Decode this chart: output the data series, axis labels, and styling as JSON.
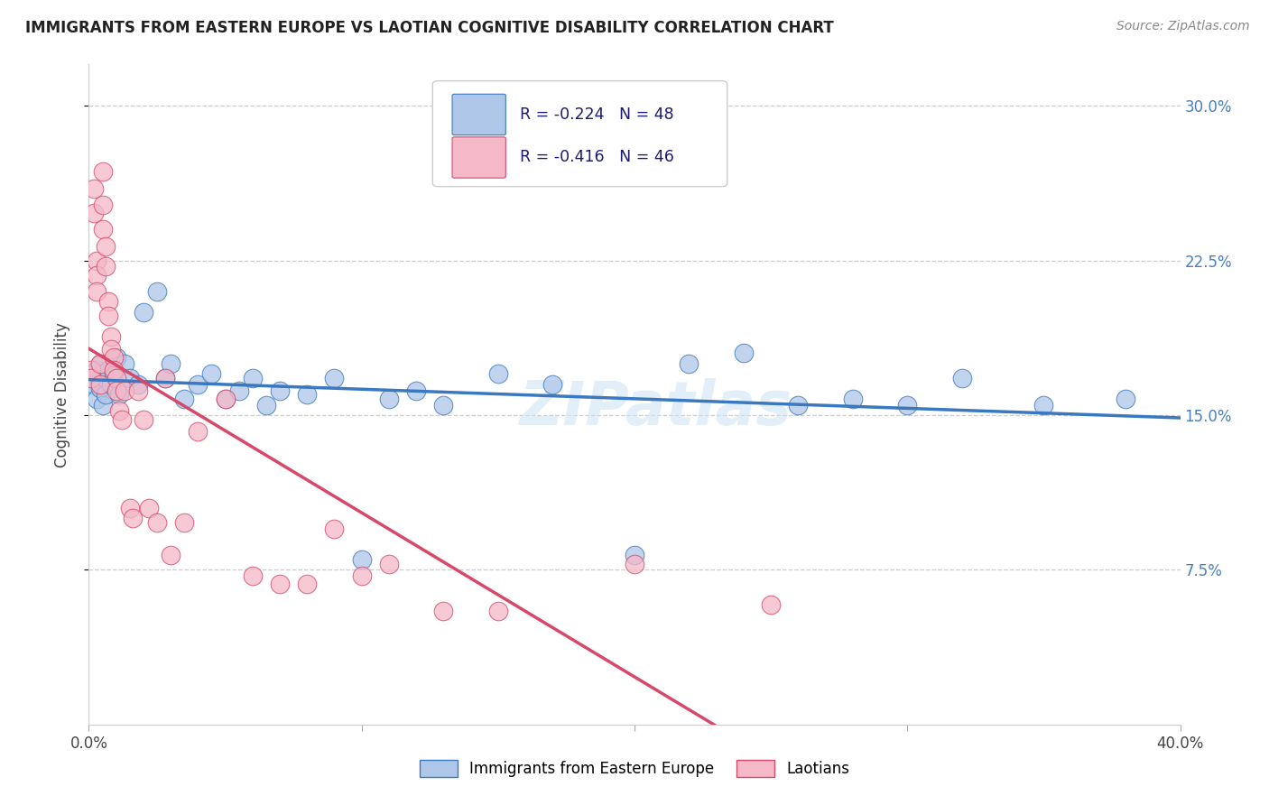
{
  "title": "IMMIGRANTS FROM EASTERN EUROPE VS LAOTIAN COGNITIVE DISABILITY CORRELATION CHART",
  "source": "Source: ZipAtlas.com",
  "ylabel": "Cognitive Disability",
  "yticks": [
    "7.5%",
    "15.0%",
    "22.5%",
    "30.0%"
  ],
  "ytick_vals": [
    0.075,
    0.15,
    0.225,
    0.3
  ],
  "xmin": 0.0,
  "xmax": 0.4,
  "ymin": 0.0,
  "ymax": 0.32,
  "legend_blue_r": "R = -0.224",
  "legend_blue_n": "N = 48",
  "legend_pink_r": "R = -0.416",
  "legend_pink_n": "N = 46",
  "blue_label": "Immigrants from Eastern Europe",
  "pink_label": "Laotians",
  "watermark": "ZIPatlas",
  "blue_color": "#aec6e8",
  "pink_color": "#f4b8c8",
  "blue_line_color": "#3a78c0",
  "pink_line_color": "#d84868",
  "blue_scatter_x": [
    0.001,
    0.002,
    0.002,
    0.003,
    0.003,
    0.004,
    0.004,
    0.005,
    0.005,
    0.006,
    0.006,
    0.007,
    0.008,
    0.009,
    0.01,
    0.011,
    0.013,
    0.015,
    0.018,
    0.02,
    0.025,
    0.028,
    0.03,
    0.035,
    0.04,
    0.045,
    0.05,
    0.055,
    0.06,
    0.065,
    0.07,
    0.08,
    0.09,
    0.1,
    0.11,
    0.12,
    0.13,
    0.15,
    0.17,
    0.2,
    0.22,
    0.24,
    0.26,
    0.28,
    0.3,
    0.32,
    0.35,
    0.38
  ],
  "blue_scatter_y": [
    0.17,
    0.168,
    0.165,
    0.172,
    0.158,
    0.175,
    0.163,
    0.17,
    0.155,
    0.168,
    0.16,
    0.172,
    0.165,
    0.17,
    0.178,
    0.16,
    0.175,
    0.168,
    0.165,
    0.2,
    0.21,
    0.168,
    0.175,
    0.158,
    0.165,
    0.17,
    0.158,
    0.162,
    0.168,
    0.155,
    0.162,
    0.16,
    0.168,
    0.08,
    0.158,
    0.162,
    0.155,
    0.17,
    0.165,
    0.082,
    0.175,
    0.18,
    0.155,
    0.158,
    0.155,
    0.168,
    0.155,
    0.158
  ],
  "pink_scatter_x": [
    0.001,
    0.001,
    0.002,
    0.002,
    0.003,
    0.003,
    0.003,
    0.004,
    0.004,
    0.005,
    0.005,
    0.005,
    0.006,
    0.006,
    0.007,
    0.007,
    0.008,
    0.008,
    0.009,
    0.009,
    0.01,
    0.01,
    0.011,
    0.012,
    0.013,
    0.015,
    0.016,
    0.018,
    0.02,
    0.022,
    0.025,
    0.028,
    0.03,
    0.035,
    0.04,
    0.05,
    0.06,
    0.07,
    0.08,
    0.09,
    0.1,
    0.11,
    0.13,
    0.15,
    0.2,
    0.25
  ],
  "pink_scatter_y": [
    0.172,
    0.168,
    0.26,
    0.248,
    0.225,
    0.218,
    0.21,
    0.165,
    0.175,
    0.268,
    0.252,
    0.24,
    0.232,
    0.222,
    0.205,
    0.198,
    0.188,
    0.182,
    0.178,
    0.172,
    0.168,
    0.162,
    0.152,
    0.148,
    0.162,
    0.105,
    0.1,
    0.162,
    0.148,
    0.105,
    0.098,
    0.168,
    0.082,
    0.098,
    0.142,
    0.158,
    0.072,
    0.068,
    0.068,
    0.095,
    0.072,
    0.078,
    0.055,
    0.055,
    0.078,
    0.058
  ]
}
